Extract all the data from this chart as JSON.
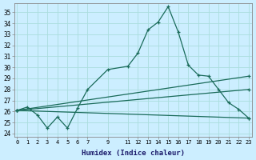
{
  "xlabel": "Humidex (Indice chaleur)",
  "bg_color": "#cceeff",
  "grid_color": "#aadddd",
  "line_color": "#1a6b5a",
  "x_ticks": [
    0,
    1,
    2,
    3,
    4,
    5,
    6,
    7,
    9,
    11,
    12,
    13,
    14,
    15,
    16,
    17,
    18,
    19,
    20,
    21,
    22,
    23
  ],
  "y_ticks": [
    24,
    25,
    26,
    27,
    28,
    29,
    30,
    31,
    32,
    33,
    34,
    35
  ],
  "xlim": [
    -0.3,
    23.3
  ],
  "ylim": [
    23.7,
    35.8
  ],
  "series": [
    {
      "x": [
        0,
        1,
        2,
        3,
        4,
        5,
        6,
        7,
        9,
        11,
        12,
        13,
        14,
        15,
        16,
        17,
        18,
        19,
        20,
        21,
        22,
        23
      ],
      "y": [
        26.1,
        26.4,
        25.7,
        24.5,
        25.5,
        24.5,
        26.3,
        28.0,
        29.8,
        30.1,
        31.3,
        33.4,
        34.1,
        35.5,
        33.2,
        30.2,
        29.3,
        29.2,
        28.0,
        26.8,
        26.2,
        25.4
      ]
    },
    {
      "x": [
        0,
        23
      ],
      "y": [
        26.1,
        29.2
      ]
    },
    {
      "x": [
        0,
        23
      ],
      "y": [
        26.1,
        28.0
      ]
    },
    {
      "x": [
        0,
        23
      ],
      "y": [
        26.1,
        25.4
      ]
    }
  ]
}
